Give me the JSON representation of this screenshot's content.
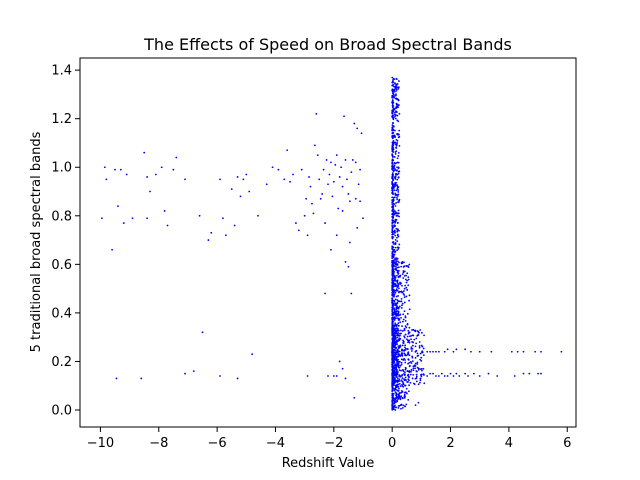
{
  "chart_data": {
    "type": "scatter",
    "title": "The Effects of Speed on Broad Spectral Bands",
    "xlabel": "Redshift Value",
    "ylabel": "5 traditional broad spectral bands",
    "xlim": [
      -10.7,
      6.3
    ],
    "ylim": [
      -0.07,
      1.45
    ],
    "x_ticks": [
      -10,
      -8,
      -6,
      -4,
      -2,
      0,
      2,
      4,
      6
    ],
    "x_tick_labels": [
      "−10",
      "−8",
      "−6",
      "−4",
      "−2",
      "0",
      "2",
      "4",
      "6"
    ],
    "y_ticks": [
      0.0,
      0.2,
      0.4,
      0.6,
      0.8,
      1.0,
      1.2,
      1.4
    ],
    "y_tick_labels": [
      "0.0",
      "0.2",
      "0.4",
      "0.6",
      "0.8",
      "1.0",
      "1.2",
      "1.4"
    ],
    "grid": false,
    "legend": "none",
    "marker_color": "#0000ff",
    "points": [
      [
        -9.95,
        0.79
      ],
      [
        -9.85,
        1.0
      ],
      [
        -9.8,
        0.95
      ],
      [
        -9.6,
        0.66
      ],
      [
        -9.4,
        0.84
      ],
      [
        -9.3,
        0.99
      ],
      [
        -9.2,
        0.77
      ],
      [
        -9.1,
        0.97
      ],
      [
        -9.5,
        0.99
      ],
      [
        -9.45,
        0.13
      ],
      [
        -8.5,
        1.06
      ],
      [
        -8.4,
        0.96
      ],
      [
        -8.3,
        0.9
      ],
      [
        -8.4,
        0.79
      ],
      [
        -8.1,
        0.97
      ],
      [
        -7.9,
        1.0
      ],
      [
        -7.8,
        0.82
      ],
      [
        -7.7,
        0.76
      ],
      [
        -7.5,
        0.99
      ],
      [
        -7.4,
        1.04
      ],
      [
        -7.1,
        0.95
      ],
      [
        -8.9,
        0.79
      ],
      [
        -8.6,
        0.13
      ],
      [
        -6.8,
        0.16
      ],
      [
        -6.6,
        0.8
      ],
      [
        -6.5,
        0.32
      ],
      [
        -6.3,
        0.7
      ],
      [
        -6.2,
        0.73
      ],
      [
        -5.9,
        0.95
      ],
      [
        -5.8,
        0.79
      ],
      [
        -5.7,
        0.72
      ],
      [
        -5.5,
        0.91
      ],
      [
        -5.4,
        0.76
      ],
      [
        -5.3,
        0.96
      ],
      [
        -5.2,
        0.88
      ],
      [
        -5.1,
        0.95
      ],
      [
        -5.0,
        0.97
      ],
      [
        -4.9,
        0.9
      ],
      [
        -4.8,
        0.23
      ],
      [
        -4.6,
        0.8
      ],
      [
        -4.3,
        0.93
      ],
      [
        -5.3,
        0.13
      ],
      [
        -5.9,
        0.14
      ],
      [
        -7.1,
        0.15
      ],
      [
        -4.1,
        1.0
      ],
      [
        -3.9,
        0.99
      ],
      [
        -3.7,
        0.95
      ],
      [
        -3.6,
        1.07
      ],
      [
        -3.5,
        0.94
      ],
      [
        -3.4,
        0.97
      ],
      [
        -3.3,
        0.77
      ],
      [
        -3.2,
        0.74
      ],
      [
        -3.1,
        0.99
      ],
      [
        -3.0,
        0.8
      ],
      [
        -2.95,
        0.87
      ],
      [
        -2.9,
        0.72
      ],
      [
        -2.85,
        0.96
      ],
      [
        -2.8,
        0.92
      ],
      [
        -2.75,
        0.85
      ],
      [
        -2.7,
        0.81
      ],
      [
        -2.65,
        1.09
      ],
      [
        -2.6,
        1.22
      ],
      [
        -2.55,
        1.05
      ],
      [
        -2.5,
        0.95
      ],
      [
        -2.45,
        0.87
      ],
      [
        -2.4,
        0.89
      ],
      [
        -2.35,
        0.99
      ],
      [
        -2.3,
        0.77
      ],
      [
        -2.25,
        1.03
      ],
      [
        -2.2,
        0.93
      ],
      [
        -2.15,
        0.97
      ],
      [
        -2.1,
        1.02
      ],
      [
        -2.05,
        0.88
      ],
      [
        -2.0,
        0.94
      ],
      [
        -1.95,
        1.01
      ],
      [
        -1.9,
        1.05
      ],
      [
        -1.85,
        0.83
      ],
      [
        -1.8,
        0.96
      ],
      [
        -1.75,
        1.0
      ],
      [
        -1.7,
        0.92
      ],
      [
        -1.65,
        1.21
      ],
      [
        -1.6,
        1.03
      ],
      [
        -1.55,
        0.95
      ],
      [
        -1.5,
        0.89
      ],
      [
        -1.45,
        0.86
      ],
      [
        -1.4,
        0.98
      ],
      [
        -1.35,
        1.03
      ],
      [
        -1.3,
        1.18
      ],
      [
        -1.25,
        1.02
      ],
      [
        -1.2,
        1.16
      ],
      [
        -1.15,
        0.93
      ],
      [
        -1.1,
        0.99
      ],
      [
        -1.05,
        1.14
      ],
      [
        -1.0,
        0.79
      ],
      [
        -2.3,
        0.48
      ],
      [
        -1.4,
        0.48
      ],
      [
        -1.5,
        0.59
      ],
      [
        -1.6,
        0.61
      ],
      [
        -1.8,
        0.2
      ],
      [
        -1.7,
        0.17
      ],
      [
        -2.2,
        0.14
      ],
      [
        -2.0,
        0.14
      ],
      [
        -1.9,
        0.14
      ],
      [
        -1.6,
        0.13
      ],
      [
        -1.3,
        0.05
      ],
      [
        -2.9,
        0.14
      ],
      [
        -1.2,
        0.75
      ],
      [
        -1.7,
        0.82
      ],
      [
        -1.45,
        0.69
      ],
      [
        -2.1,
        0.66
      ],
      [
        -1.9,
        0.72
      ],
      [
        -1.25,
        0.87
      ],
      [
        -1.1,
        0.86
      ]
    ],
    "dense_bands": [
      {
        "x_range": [
          0.0,
          0.25
        ],
        "y_range": [
          0.0,
          1.37
        ]
      },
      {
        "x_range": [
          0.0,
          0.6
        ],
        "y_range": [
          0.0,
          0.62
        ]
      },
      {
        "x_range": [
          0.0,
          1.1
        ],
        "y_range": [
          0.1,
          0.34
        ]
      }
    ],
    "tail_points": [
      [
        1.2,
        0.24
      ],
      [
        1.3,
        0.24
      ],
      [
        1.4,
        0.24
      ],
      [
        1.5,
        0.24
      ],
      [
        1.6,
        0.24
      ],
      [
        1.8,
        0.24
      ],
      [
        1.9,
        0.25
      ],
      [
        2.1,
        0.24
      ],
      [
        2.2,
        0.25
      ],
      [
        2.5,
        0.25
      ],
      [
        2.7,
        0.24
      ],
      [
        3.0,
        0.24
      ],
      [
        3.4,
        0.24
      ],
      [
        4.1,
        0.24
      ],
      [
        4.3,
        0.24
      ],
      [
        4.5,
        0.24
      ],
      [
        4.9,
        0.24
      ],
      [
        5.1,
        0.24
      ],
      [
        5.8,
        0.24
      ],
      [
        1.2,
        0.14
      ],
      [
        1.3,
        0.15
      ],
      [
        1.4,
        0.15
      ],
      [
        1.5,
        0.14
      ],
      [
        1.6,
        0.14
      ],
      [
        1.7,
        0.15
      ],
      [
        1.8,
        0.14
      ],
      [
        1.9,
        0.14
      ],
      [
        2.0,
        0.15
      ],
      [
        2.1,
        0.14
      ],
      [
        2.2,
        0.15
      ],
      [
        2.3,
        0.14
      ],
      [
        2.5,
        0.15
      ],
      [
        2.6,
        0.14
      ],
      [
        2.8,
        0.15
      ],
      [
        3.0,
        0.14
      ],
      [
        3.3,
        0.15
      ],
      [
        3.6,
        0.14
      ],
      [
        4.2,
        0.14
      ],
      [
        4.5,
        0.15
      ],
      [
        4.7,
        0.15
      ],
      [
        5.0,
        0.15
      ],
      [
        5.1,
        0.15
      ],
      [
        0.9,
        0.03
      ],
      [
        0.8,
        0.02
      ],
      [
        1.1,
        0.11
      ],
      [
        0.7,
        0.13
      ]
    ]
  }
}
